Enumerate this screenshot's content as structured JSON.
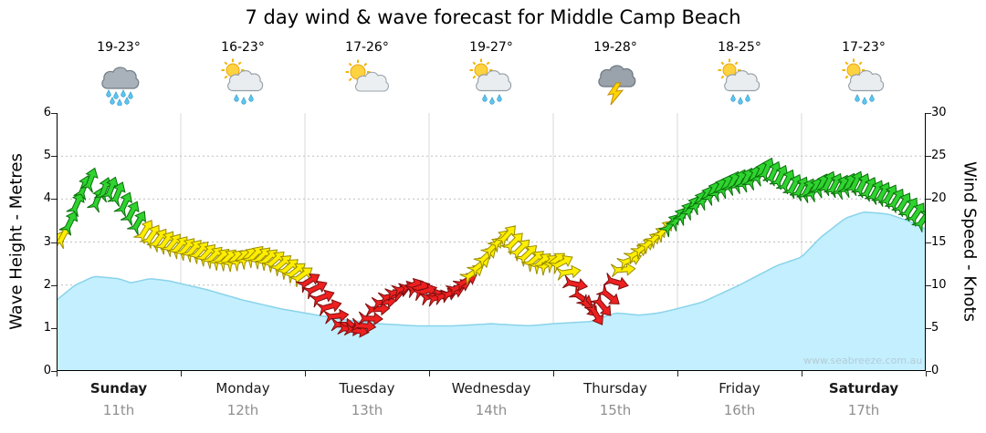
{
  "title": "7 day wind & wave forecast for Middle Camp Beach",
  "watermark": "www.seabreeze.com.au",
  "days": [
    {
      "name": "Sunday",
      "date": "11th",
      "temp": "19-23°",
      "icon": "rain",
      "bold": true
    },
    {
      "name": "Monday",
      "date": "12th",
      "temp": "16-23°",
      "icon": "sun-cloud-rain",
      "bold": false
    },
    {
      "name": "Tuesday",
      "date": "13th",
      "temp": "17-26°",
      "icon": "sun-cloud",
      "bold": false
    },
    {
      "name": "Wednesday",
      "date": "14th",
      "temp": "19-27°",
      "icon": "sun-cloud-rain",
      "bold": false
    },
    {
      "name": "Thursday",
      "date": "15th",
      "temp": "19-28°",
      "icon": "storm",
      "bold": false
    },
    {
      "name": "Friday",
      "date": "16th",
      "temp": "18-25°",
      "icon": "sun-cloud-rain",
      "bold": false
    },
    {
      "name": "Saturday",
      "date": "17th",
      "temp": "17-23°",
      "icon": "sun-cloud-rain",
      "bold": true
    }
  ],
  "chart_data": {
    "type": "area",
    "x_axis": {
      "unit": "days",
      "range": [
        0,
        7
      ]
    },
    "left_axis": {
      "label": "Wave Height - Metres",
      "range": [
        0,
        6
      ],
      "ticks": [
        0,
        1,
        2,
        3,
        4,
        5,
        6
      ]
    },
    "right_axis": {
      "label": "Wind Speed - Knots",
      "range": [
        0,
        30
      ],
      "ticks": [
        0,
        5,
        10,
        15,
        20,
        25,
        30
      ]
    },
    "wind_arrows": {
      "spacing_days": 0.055,
      "color_thresholds_kn": {
        "green_min": 17,
        "yellow_min": 11
      }
    },
    "series": [
      {
        "name": "Wave Height",
        "kind": "area",
        "axis": "left",
        "unit": "metres",
        "points": [
          [
            0,
            1.65
          ],
          [
            0.15,
            2.0
          ],
          [
            0.3,
            2.2
          ],
          [
            0.5,
            2.15
          ],
          [
            0.6,
            2.05
          ],
          [
            0.75,
            2.15
          ],
          [
            0.9,
            2.1
          ],
          [
            1.05,
            2.0
          ],
          [
            1.2,
            1.9
          ],
          [
            1.5,
            1.65
          ],
          [
            1.8,
            1.45
          ],
          [
            2.0,
            1.35
          ],
          [
            2.3,
            1.2
          ],
          [
            2.6,
            1.1
          ],
          [
            2.9,
            1.05
          ],
          [
            3.2,
            1.05
          ],
          [
            3.5,
            1.1
          ],
          [
            3.8,
            1.05
          ],
          [
            4.0,
            1.1
          ],
          [
            4.3,
            1.15
          ],
          [
            4.5,
            1.35
          ],
          [
            4.7,
            1.3
          ],
          [
            4.85,
            1.35
          ],
          [
            5.0,
            1.45
          ],
          [
            5.2,
            1.6
          ],
          [
            5.5,
            2.0
          ],
          [
            5.8,
            2.45
          ],
          [
            6.0,
            2.65
          ],
          [
            6.15,
            3.1
          ],
          [
            6.35,
            3.55
          ],
          [
            6.5,
            3.7
          ],
          [
            6.7,
            3.65
          ],
          [
            6.85,
            3.5
          ],
          [
            7,
            3.3
          ]
        ]
      },
      {
        "name": "Wind Speed",
        "kind": "wind-arrows",
        "axis": "right",
        "unit": "knots",
        "points": [
          [
            0,
            15,
            30
          ],
          [
            0.07,
            16,
            28
          ],
          [
            0.13,
            18,
            25
          ],
          [
            0.2,
            21,
            22
          ],
          [
            0.27,
            22.5,
            20
          ],
          [
            0.33,
            20,
            22
          ],
          [
            0.4,
            21.5,
            20
          ],
          [
            0.48,
            21,
            22
          ],
          [
            0.55,
            19.5,
            25
          ],
          [
            0.63,
            18,
            28
          ],
          [
            0.7,
            16.5,
            32
          ],
          [
            0.8,
            15.5,
            35
          ],
          [
            0.9,
            15,
            38
          ],
          [
            1,
            14.5,
            40
          ],
          [
            1.15,
            14,
            42
          ],
          [
            1.3,
            13.2,
            45
          ],
          [
            1.45,
            13,
            45
          ],
          [
            1.6,
            13.5,
            44
          ],
          [
            1.75,
            13,
            48
          ],
          [
            1.88,
            12,
            50
          ],
          [
            2,
            11,
            55
          ],
          [
            2.1,
            9.5,
            65
          ],
          [
            2.2,
            7.5,
            75
          ],
          [
            2.3,
            5.5,
            90
          ],
          [
            2.4,
            4.5,
            100
          ],
          [
            2.5,
            5.5,
            95
          ],
          [
            2.6,
            7.5,
            85
          ],
          [
            2.72,
            9,
            75
          ],
          [
            2.85,
            10,
            70
          ],
          [
            2.95,
            9.5,
            72
          ],
          [
            3.05,
            8.5,
            75
          ],
          [
            3.18,
            9,
            70
          ],
          [
            3.3,
            10.5,
            60
          ],
          [
            3.42,
            12.5,
            50
          ],
          [
            3.52,
            14.5,
            45
          ],
          [
            3.62,
            16,
            42
          ],
          [
            3.72,
            14.5,
            45
          ],
          [
            3.85,
            13,
            48
          ],
          [
            3.95,
            12.5,
            50
          ],
          [
            4.05,
            13,
            55
          ],
          [
            4.15,
            11,
            90
          ],
          [
            4.25,
            8,
            130
          ],
          [
            4.35,
            6.5,
            150
          ],
          [
            4.45,
            8.5,
            130
          ],
          [
            4.55,
            11.5,
            90
          ],
          [
            4.65,
            13.5,
            60
          ],
          [
            4.78,
            15,
            50
          ],
          [
            4.9,
            16.5,
            42
          ],
          [
            5.02,
            18,
            35
          ],
          [
            5.15,
            19.5,
            32
          ],
          [
            5.3,
            21,
            30
          ],
          [
            5.45,
            22,
            28
          ],
          [
            5.6,
            22.5,
            26
          ],
          [
            5.72,
            23.5,
            25
          ],
          [
            5.85,
            22.5,
            26
          ],
          [
            5.95,
            21.5,
            28
          ],
          [
            6.08,
            21,
            28
          ],
          [
            6.2,
            22,
            26
          ],
          [
            6.32,
            21.5,
            27
          ],
          [
            6.45,
            22,
            26
          ],
          [
            6.58,
            21,
            28
          ],
          [
            6.7,
            20.5,
            30
          ],
          [
            6.82,
            19.5,
            32
          ],
          [
            6.92,
            18.5,
            34
          ],
          [
            7,
            17.5,
            36
          ]
        ]
      }
    ]
  },
  "colors": {
    "wave_fill": "#c3efff",
    "wave_edge": "#8ad3ea",
    "green": "#2fd32f",
    "green_edge": "#0b6e0b",
    "yellow": "#ffee00",
    "yellow_edge": "#9a8c00",
    "red": "#ee2020",
    "red_edge": "#7d0f0f",
    "grid": "#d8d8d8",
    "grid_dotted": "#bfbfbf",
    "frame": "#000000"
  }
}
